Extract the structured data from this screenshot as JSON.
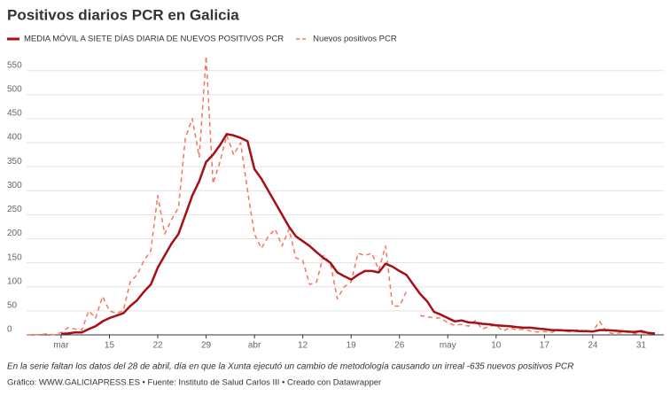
{
  "chart_data": {
    "type": "line",
    "title": "Positivos diarios PCR en Galicia",
    "note": "En la serie faltan los datos del 28 de abril, día en que la Xunta ejecutó un cambio de metodología causando un irreal -635 nuevos positivos PCR",
    "source": "Gráfico: WWW.GALICIAPRESS.ES • Fuente: Instituto de Salud Carlos III • Creado con Datawrapper",
    "categories": [
      null,
      null,
      null,
      null,
      null,
      "mar",
      null,
      null,
      null,
      null,
      null,
      null,
      "15",
      null,
      null,
      null,
      null,
      null,
      null,
      "22",
      null,
      null,
      null,
      null,
      null,
      null,
      "29",
      null,
      null,
      null,
      null,
      null,
      null,
      "abr",
      null,
      null,
      null,
      null,
      null,
      null,
      "12",
      null,
      null,
      null,
      null,
      null,
      null,
      "19",
      null,
      null,
      null,
      null,
      null,
      null,
      "26",
      null,
      null,
      null,
      null,
      null,
      null,
      "may",
      null,
      null,
      null,
      null,
      null,
      null,
      "10",
      null,
      null,
      null,
      null,
      null,
      null,
      "17",
      null,
      null,
      null,
      null,
      null,
      null,
      "24",
      null,
      null,
      null,
      null,
      null,
      null,
      "31",
      null,
      null
    ],
    "series": [
      {
        "name": "MEDIA MÓVIL A SIETE DÍAS DIARIA DE NUEVOS POSITIVOS PCR",
        "color": "#a50f15",
        "style": "solid",
        "values": [
          null,
          null,
          null,
          null,
          null,
          2,
          3,
          5,
          5,
          12,
          18,
          28,
          35,
          40,
          45,
          60,
          72,
          90,
          105,
          140,
          165,
          190,
          210,
          250,
          290,
          320,
          360,
          375,
          395,
          418,
          415,
          410,
          403,
          345,
          325,
          300,
          275,
          250,
          225,
          205,
          195,
          185,
          172,
          160,
          150,
          130,
          122,
          115,
          125,
          133,
          133,
          130,
          148,
          142,
          133,
          125,
          105,
          85,
          70,
          48,
          42,
          35,
          28,
          30,
          26,
          25,
          23,
          22,
          20,
          19,
          18,
          16,
          15,
          15,
          13,
          12,
          10,
          10,
          9,
          9,
          8,
          8,
          7,
          10,
          10,
          9,
          8,
          7,
          6,
          8,
          4,
          3
        ]
      },
      {
        "name": "Nuevos positivos PCR",
        "color": "#f47560",
        "style": "dashed",
        "values": [
          0,
          0,
          1,
          2,
          0,
          5,
          15,
          12,
          10,
          50,
          35,
          80,
          50,
          45,
          50,
          110,
          125,
          155,
          175,
          290,
          210,
          240,
          265,
          410,
          450,
          370,
          580,
          315,
          360,
          415,
          375,
          400,
          300,
          210,
          180,
          205,
          220,
          185,
          220,
          160,
          155,
          105,
          110,
          165,
          150,
          75,
          100,
          110,
          170,
          165,
          170,
          135,
          185,
          60,
          60,
          90,
          null,
          40,
          38,
          35,
          35,
          25,
          20,
          22,
          18,
          30,
          12,
          18,
          20,
          8,
          15,
          10,
          12,
          8,
          6,
          7,
          5,
          10,
          8,
          6,
          12,
          5,
          8,
          28,
          5,
          3,
          4,
          6,
          2,
          5,
          2,
          3
        ]
      }
    ],
    "ylim": [
      0,
      590
    ],
    "yticks": [
      0,
      50,
      100,
      150,
      200,
      250,
      300,
      350,
      400,
      450,
      500,
      550
    ],
    "grid": true
  }
}
